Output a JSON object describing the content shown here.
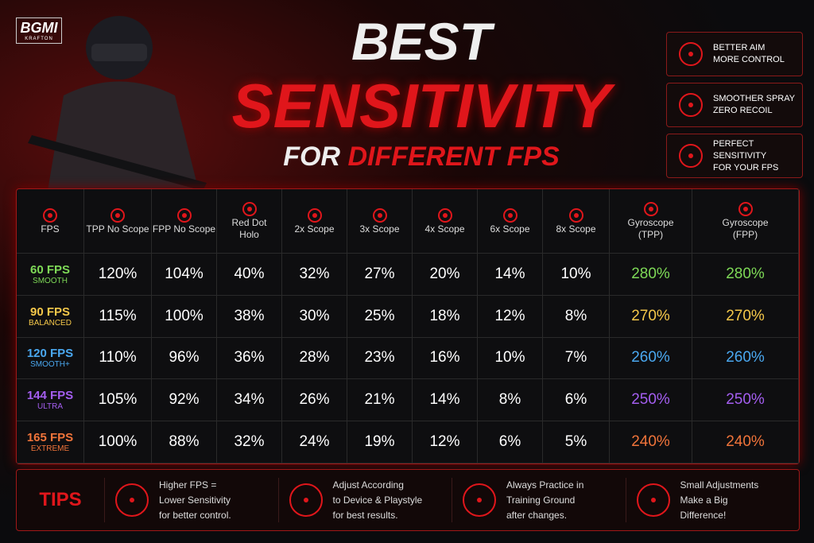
{
  "logo": {
    "title": "BGMI",
    "subtitle": "KRAFTON"
  },
  "title": {
    "line1": "BEST",
    "line2": "SENSITIVITY",
    "line3a": "FOR",
    "line3b": "DIFFERENT FPS"
  },
  "features": [
    [
      "BETTER AIM",
      "MORE CONTROL"
    ],
    [
      "SMOOTHER SPRAY",
      "ZERO RECOIL"
    ],
    [
      "PERFECT SENSITIVITY",
      "FOR YOUR FPS"
    ]
  ],
  "table": {
    "headers": [
      [
        "FPS"
      ],
      [
        "TPP No Scope"
      ],
      [
        "FPP No Scope"
      ],
      [
        "Red Dot",
        "Holo"
      ],
      [
        "2x Scope"
      ],
      [
        "3x Scope"
      ],
      [
        "4x Scope"
      ],
      [
        "6x Scope"
      ],
      [
        "8x Scope"
      ],
      [
        "Gyroscope",
        "(TPP)"
      ],
      [
        "Gyroscope",
        "(FPP)"
      ]
    ],
    "rows": [
      {
        "fps": "60 FPS",
        "mode": "SMOOTH",
        "color": "#7ed957",
        "values": [
          "120%",
          "104%",
          "40%",
          "32%",
          "27%",
          "20%",
          "14%",
          "10%",
          "280%",
          "280%"
        ]
      },
      {
        "fps": "90 FPS",
        "mode": "BALANCED",
        "color": "#f5c84a",
        "values": [
          "115%",
          "100%",
          "38%",
          "30%",
          "25%",
          "18%",
          "12%",
          "8%",
          "270%",
          "270%"
        ]
      },
      {
        "fps": "120 FPS",
        "mode": "SMOOTH+",
        "color": "#4aa8f0",
        "values": [
          "110%",
          "96%",
          "36%",
          "28%",
          "23%",
          "16%",
          "10%",
          "7%",
          "260%",
          "260%"
        ]
      },
      {
        "fps": "144 FPS",
        "mode": "ULTRA",
        "color": "#a45ef0",
        "values": [
          "105%",
          "92%",
          "34%",
          "26%",
          "21%",
          "14%",
          "8%",
          "6%",
          "250%",
          "250%"
        ]
      },
      {
        "fps": "165 FPS",
        "mode": "EXTREME",
        "color": "#f0743a",
        "values": [
          "100%",
          "88%",
          "32%",
          "24%",
          "19%",
          "12%",
          "6%",
          "5%",
          "240%",
          "240%"
        ]
      }
    ]
  },
  "tips": {
    "label": "TIPS",
    "items": [
      [
        "Higher FPS =",
        "Lower Sensitivity",
        "for better control."
      ],
      [
        "Adjust According",
        "to Device & Playstyle",
        "for best results."
      ],
      [
        "Always Practice in",
        "Training Ground",
        "after changes."
      ],
      [
        "Small Adjustments",
        "Make a Big",
        "Difference!"
      ]
    ]
  }
}
